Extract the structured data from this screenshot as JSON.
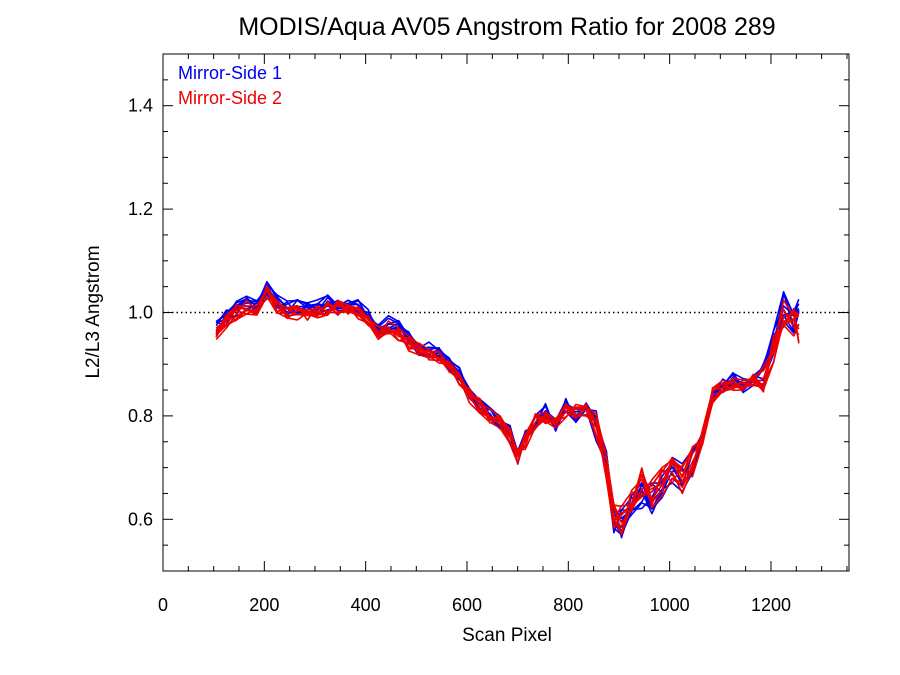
{
  "chart_data": {
    "type": "line",
    "title": "MODIS/Aqua AV05 Angstrom Ratio for 2008 289",
    "xlabel": "Scan Pixel",
    "ylabel": "L2/L3 Angstrom",
    "xlim": [
      0,
      1354
    ],
    "ylim": [
      0.5,
      1.5
    ],
    "x_ticks": [
      0,
      200,
      400,
      600,
      800,
      1000,
      1200
    ],
    "x_tick_labels": [
      "0",
      "200",
      "400",
      "600",
      "800",
      "1000",
      "1200"
    ],
    "y_ticks": [
      0.6,
      0.8,
      1.0,
      1.2,
      1.4
    ],
    "y_tick_labels": [
      "0.6",
      "0.8",
      "1.0",
      "1.2",
      "1.4"
    ],
    "reference_line": {
      "y": 1.0,
      "style": "dotted"
    },
    "legend": {
      "placement": "top-left"
    },
    "colors": {
      "mirror_side_1": "#0000ee",
      "mirror_side_2": "#ee0000",
      "reference": "#000000"
    },
    "x": [
      105,
      125,
      145,
      165,
      185,
      205,
      225,
      245,
      265,
      285,
      305,
      325,
      345,
      365,
      385,
      405,
      425,
      445,
      465,
      485,
      505,
      525,
      545,
      565,
      585,
      605,
      625,
      645,
      665,
      685,
      700,
      715,
      735,
      755,
      775,
      795,
      815,
      835,
      855,
      875,
      890,
      905,
      925,
      945,
      965,
      985,
      1005,
      1025,
      1045,
      1065,
      1085,
      1105,
      1125,
      1145,
      1165,
      1185,
      1205,
      1225,
      1245,
      1255
    ],
    "series": [
      {
        "name": "Mirror-Side 1",
        "color": "#0000ee",
        "values": [
          0.97,
          0.99,
          1.01,
          1.02,
          1.01,
          1.05,
          1.02,
          1.01,
          1.01,
          1.01,
          1.01,
          1.02,
          1.01,
          1.01,
          1.01,
          1.0,
          0.97,
          0.98,
          0.97,
          0.95,
          0.93,
          0.93,
          0.92,
          0.9,
          0.88,
          0.84,
          0.82,
          0.81,
          0.79,
          0.77,
          0.72,
          0.76,
          0.79,
          0.81,
          0.78,
          0.82,
          0.8,
          0.82,
          0.78,
          0.72,
          0.6,
          0.59,
          0.63,
          0.65,
          0.64,
          0.66,
          0.69,
          0.68,
          0.71,
          0.76,
          0.83,
          0.86,
          0.87,
          0.86,
          0.87,
          0.88,
          0.94,
          1.01,
          0.99,
          1.0
        ]
      },
      {
        "name": "Mirror-Side 2",
        "color": "#ee0000",
        "values": [
          0.96,
          0.98,
          1.0,
          1.01,
          1.0,
          1.04,
          1.01,
          1.0,
          1.0,
          1.0,
          1.0,
          1.01,
          1.01,
          1.0,
          1.0,
          0.99,
          0.96,
          0.97,
          0.96,
          0.94,
          0.93,
          0.92,
          0.91,
          0.89,
          0.87,
          0.84,
          0.82,
          0.8,
          0.79,
          0.76,
          0.72,
          0.75,
          0.79,
          0.8,
          0.79,
          0.81,
          0.81,
          0.81,
          0.78,
          0.7,
          0.61,
          0.6,
          0.64,
          0.67,
          0.65,
          0.67,
          0.7,
          0.68,
          0.71,
          0.76,
          0.84,
          0.86,
          0.86,
          0.86,
          0.87,
          0.87,
          0.93,
          1.0,
          0.98,
          0.97
        ]
      }
    ]
  }
}
